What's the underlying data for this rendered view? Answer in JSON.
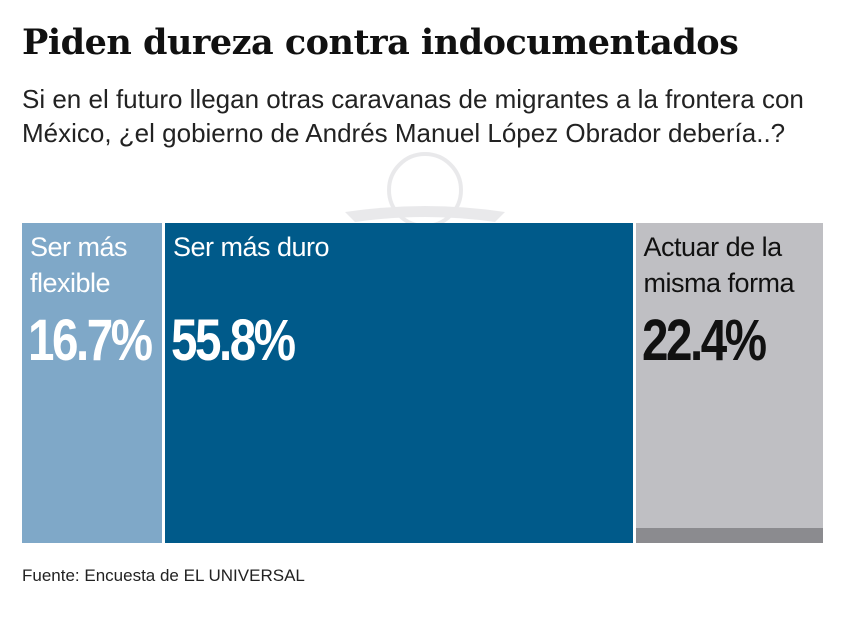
{
  "title": "Piden dureza contra indocumentados",
  "subtitle": "Si en el futuro llegan otras caravanas de migrantes a la frontera con México, ¿el gobierno de Andrés Manuel López Obrador debería..?",
  "source": "Fuente: Encuesta de EL UNIVERSAL",
  "chart_data": {
    "type": "bar",
    "orientation": "stacked-horizontal-proportional",
    "categories": [
      "Ser más flexible",
      "Ser más duro",
      "Actuar de la misma forma"
    ],
    "values": [
      16.7,
      55.8,
      22.4
    ],
    "labels": [
      "16.7%",
      "55.8%",
      "22.4%"
    ],
    "colors": [
      "#7fa8c8",
      "#005a8a",
      "#bfbfc3"
    ],
    "text_colors": [
      "#ffffff",
      "#ffffff",
      "#111111"
    ]
  }
}
